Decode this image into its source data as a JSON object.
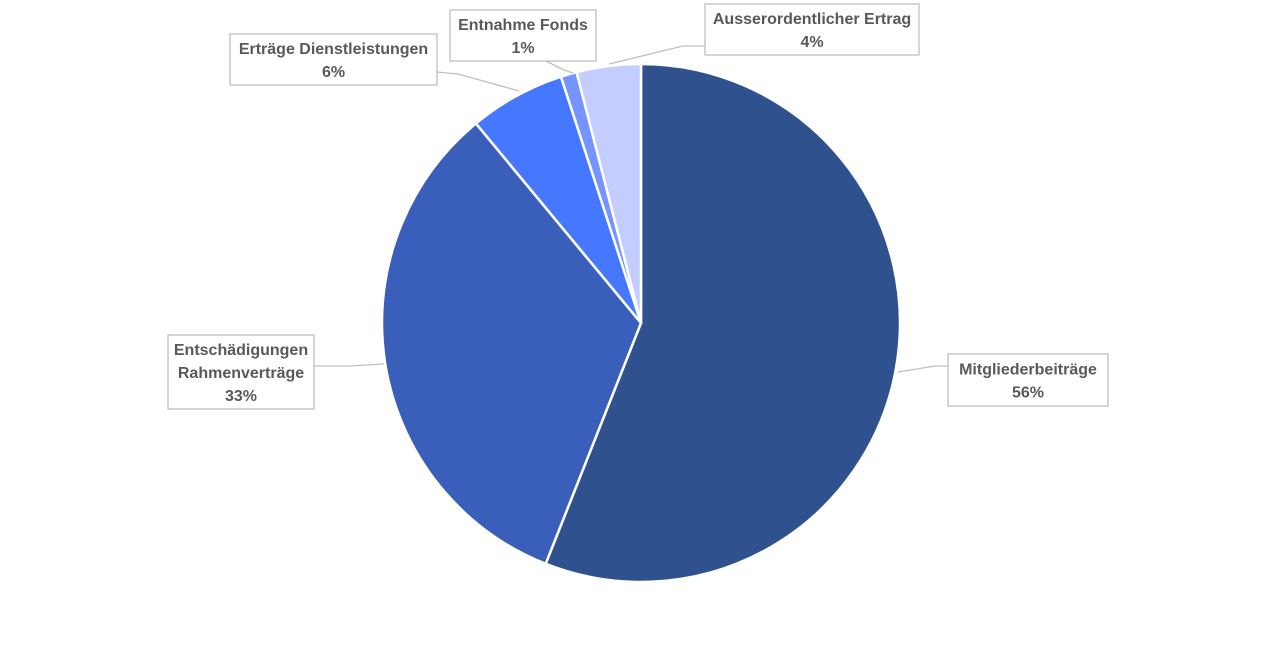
{
  "chart_data": {
    "type": "pie",
    "title": "",
    "slices": [
      {
        "label": "Mitgliederbeiträge",
        "value": 56,
        "pct_label": "56%",
        "color": "#2f528f"
      },
      {
        "label": "Entschädigungen Rahmenverträge",
        "label_lines": [
          "Entschädigungen",
          "Rahmenverträge"
        ],
        "value": 33,
        "pct_label": "33%",
        "color": "#3a5fbb"
      },
      {
        "label": "Erträge Dienstleistungen",
        "value": 6,
        "pct_label": "6%",
        "color": "#4677ff"
      },
      {
        "label": "Entnahme Fonds",
        "value": 1,
        "pct_label": "1%",
        "color": "#7594ff"
      },
      {
        "label": "Ausserordentlicher Ertrag",
        "value": 4,
        "pct_label": "4%",
        "color": "#c4cdff"
      }
    ],
    "start_angle": "12 o'clock",
    "direction": "clockwise",
    "legend": "none",
    "data_labels": "callout boxes with category name and percentage"
  }
}
